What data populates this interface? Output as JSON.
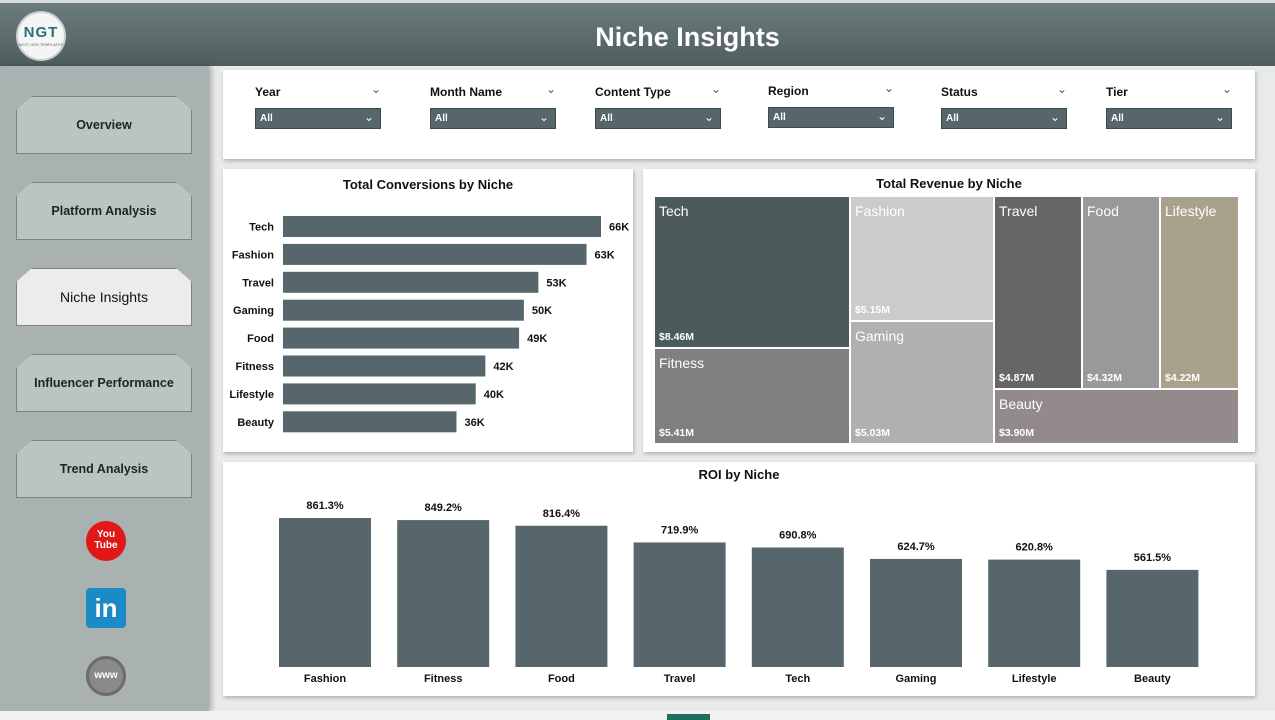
{
  "header": {
    "title": "Niche Insights",
    "logo_text": "NGT",
    "logo_sub": "NEXT GEN TEMPLATES"
  },
  "sidebar": {
    "items": [
      {
        "label": "Overview",
        "active": false
      },
      {
        "label": "Platform Analysis",
        "active": false
      },
      {
        "label": "Niche Insights",
        "active": true
      },
      {
        "label": "Influencer Performance",
        "active": false
      },
      {
        "label": "Trend Analysis",
        "active": false
      }
    ],
    "social": {
      "youtube": "You\nTube",
      "linkedin": "in",
      "website": "www"
    }
  },
  "filters": [
    {
      "label": "Year",
      "value": "All"
    },
    {
      "label": "Month Name",
      "value": "All"
    },
    {
      "label": "Content Type",
      "value": "All"
    },
    {
      "label": "Region",
      "value": "All"
    },
    {
      "label": "Status",
      "value": "All"
    },
    {
      "label": "Tier",
      "value": "All"
    }
  ],
  "chart_data": [
    {
      "type": "bar",
      "orientation": "horizontal",
      "title": "Total Conversions by Niche",
      "categories": [
        "Tech",
        "Fashion",
        "Travel",
        "Gaming",
        "Food",
        "Fitness",
        "Lifestyle",
        "Beauty"
      ],
      "values": [
        66000,
        63000,
        53000,
        50000,
        49000,
        42000,
        40000,
        36000
      ],
      "labels": [
        "66K",
        "63K",
        "53K",
        "50K",
        "49K",
        "42K",
        "40K",
        "36K"
      ],
      "color": "#56666a"
    },
    {
      "type": "treemap",
      "title": "Total Revenue by Niche",
      "categories": [
        "Tech",
        "Fashion",
        "Travel",
        "Food",
        "Lifestyle",
        "Fitness",
        "Gaming",
        "Beauty"
      ],
      "values": [
        8.46,
        5.15,
        4.87,
        4.32,
        4.22,
        5.41,
        5.03,
        3.9
      ],
      "labels": [
        "$8.46M",
        "$5.15M",
        "$4.87M",
        "$4.32M",
        "$4.22M",
        "$5.41M",
        "$5.03M",
        "$3.90M"
      ],
      "colors": [
        "#4d5a5c",
        "#cbcbcb",
        "#666666",
        "#999999",
        "#a8a28c",
        "#7f7f7f",
        "#b0b0b0",
        "#938b8b"
      ]
    },
    {
      "type": "bar",
      "title": "ROI by Niche",
      "categories": [
        "Fashion",
        "Fitness",
        "Food",
        "Travel",
        "Tech",
        "Gaming",
        "Lifestyle",
        "Beauty"
      ],
      "values": [
        861.3,
        849.2,
        816.4,
        719.9,
        690.8,
        624.7,
        620.8,
        561.5
      ],
      "labels": [
        "861.3%",
        "849.2%",
        "816.4%",
        "719.9%",
        "690.8%",
        "624.7%",
        "620.8%",
        "561.5%"
      ],
      "color": "#56666a"
    }
  ]
}
